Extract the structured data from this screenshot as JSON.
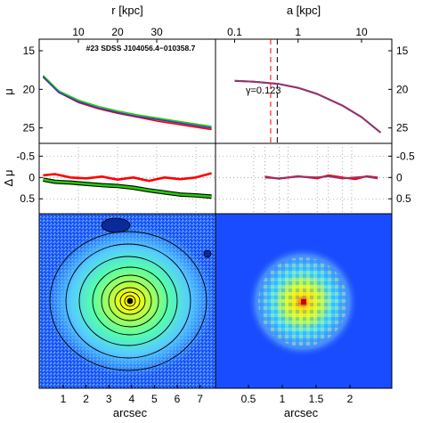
{
  "top_axis": {
    "left_label": "r [kpc]",
    "left_ticks": [
      "10",
      "20",
      "30"
    ],
    "right_label": "a [kpc]",
    "right_ticks": [
      "0.1",
      "1",
      "10"
    ]
  },
  "object_label": "#23 SDSS J104056.4−010358.7",
  "gamma_label": "γ=0.123",
  "bottom_axis": {
    "label_left": "arcsec",
    "label_right": "arcsec",
    "left_ticks": [
      "1",
      "2",
      "3",
      "4",
      "5",
      "6",
      "7"
    ],
    "right_ticks": [
      "0.5",
      "1",
      "1.5",
      "2"
    ]
  },
  "colors": {
    "red": "#ff0000",
    "green": "#22cc00",
    "blue": "#3333cc",
    "purple": "#993366",
    "image_background": "#1a4cff",
    "cyan_background": "#66bbff"
  },
  "chart_data": [
    {
      "type": "line",
      "panel": "top-left surface brightness profile",
      "xlabel": "r [kpc]",
      "ylabel": "μ",
      "xlim": [
        0,
        45
      ],
      "ylim": [
        27,
        13.5
      ],
      "yticks": [
        "15",
        "20",
        "25"
      ],
      "series": [
        {
          "color": "red",
          "x": [
            1,
            5,
            10,
            15,
            20,
            25,
            30,
            35,
            40,
            44
          ],
          "y": [
            18.3,
            20.4,
            21.7,
            22.5,
            23.1,
            23.6,
            24.1,
            24.5,
            24.9,
            25.2
          ]
        },
        {
          "color": "green",
          "x": [
            1,
            5,
            10,
            15,
            20,
            25,
            30,
            35,
            40,
            44
          ],
          "y": [
            18.2,
            20.2,
            21.4,
            22.2,
            22.8,
            23.3,
            23.7,
            24.1,
            24.5,
            24.8
          ]
        },
        {
          "color": "blue",
          "x": [
            1,
            5,
            10,
            15,
            20,
            25,
            30,
            35,
            40,
            44
          ],
          "y": [
            18.4,
            20.4,
            21.6,
            22.4,
            23.0,
            23.5,
            23.9,
            24.3,
            24.7,
            25.0
          ]
        }
      ]
    },
    {
      "type": "line",
      "panel": "top-right surface brightness profile",
      "xlabel": "a [kpc]",
      "ylabel": "μ",
      "xscale": "log",
      "xlim": [
        0.05,
        30
      ],
      "ylim": [
        27,
        13.5
      ],
      "yticks": [
        "15",
        "20",
        "25"
      ],
      "vlines": [
        {
          "x": 0.37,
          "color": "red"
        },
        {
          "x": 0.47,
          "color": "black"
        }
      ],
      "series": [
        {
          "color": "blue",
          "x": [
            0.1,
            0.2,
            0.5,
            1,
            2,
            5,
            10,
            20
          ],
          "y": [
            18.9,
            19.0,
            19.3,
            19.8,
            20.6,
            22.1,
            23.6,
            25.6
          ]
        },
        {
          "color": "purple",
          "x": [
            0.1,
            0.2,
            0.5,
            1,
            2,
            5,
            10,
            20
          ],
          "y": [
            18.9,
            19.0,
            19.3,
            19.8,
            20.6,
            22.1,
            23.6,
            25.6
          ]
        }
      ]
    },
    {
      "type": "line",
      "panel": "middle-left residuals",
      "ylabel": "Δ μ",
      "xlim": [
        0,
        45
      ],
      "ylim": [
        0.85,
        -0.8
      ],
      "yticks": [
        "-0.5",
        "0",
        "0.5"
      ],
      "series": [
        {
          "color": "red",
          "x": [
            1,
            4,
            8,
            12,
            16,
            20,
            24,
            28,
            32,
            36,
            40,
            44
          ],
          "y": [
            -0.05,
            -0.08,
            0.0,
            0.02,
            -0.02,
            0.05,
            0.0,
            0.08,
            0.0,
            0.04,
            0.0,
            -0.1
          ]
        },
        {
          "color": "green",
          "x": [
            1,
            4,
            8,
            12,
            16,
            20,
            24,
            28,
            32,
            36,
            40,
            44
          ],
          "y": [
            0.05,
            0.1,
            0.12,
            0.15,
            0.18,
            0.2,
            0.24,
            0.3,
            0.35,
            0.4,
            0.42,
            0.45
          ]
        }
      ]
    },
    {
      "type": "line",
      "panel": "middle-right residuals",
      "ylabel": "Δ μ",
      "xscale": "log",
      "xlim": [
        0.05,
        30
      ],
      "ylim": [
        0.85,
        -0.8
      ],
      "yticks": [
        "-0.5",
        "0",
        "0.5"
      ],
      "series": [
        {
          "color": "red",
          "x": [
            0.3,
            0.5,
            1,
            2,
            3,
            5,
            8,
            12,
            18
          ],
          "y": [
            -0.02,
            0.03,
            -0.03,
            0.02,
            -0.05,
            0.0,
            0.04,
            -0.03,
            0.0
          ]
        },
        {
          "color": "purple",
          "x": [
            0.3,
            0.5,
            1,
            2,
            3,
            5,
            8,
            12,
            18
          ],
          "y": [
            0.0,
            0.02,
            -0.02,
            0.0,
            -0.03,
            0.02,
            0.0,
            -0.02,
            0.02
          ]
        }
      ]
    },
    {
      "type": "heatmap",
      "panel": "bottom-left galaxy image with contours",
      "xlabel": "arcsec",
      "xticks": [
        "1",
        "2",
        "3",
        "4",
        "5",
        "6",
        "7"
      ]
    },
    {
      "type": "heatmap",
      "panel": "bottom-right zoomed image",
      "xlabel": "arcsec",
      "xticks": [
        "0.5",
        "1",
        "1.5",
        "2"
      ]
    }
  ]
}
